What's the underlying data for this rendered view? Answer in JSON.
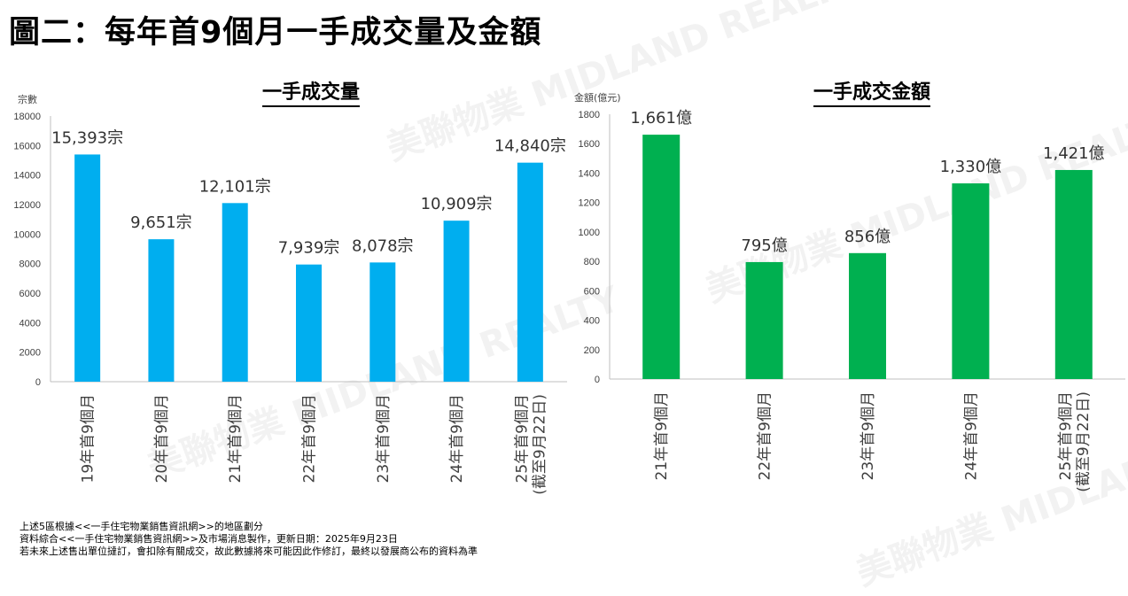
{
  "header": {
    "title": "圖二：每年首9個月一手成交量及金額"
  },
  "watermark": "美聯物業 MIDLAND REALTY",
  "chart_data": [
    {
      "type": "bar",
      "title": "一手成交量",
      "ylabel": "宗數",
      "ylim": [
        0,
        18000
      ],
      "yticks": [
        0,
        2000,
        4000,
        6000,
        8000,
        10000,
        12000,
        14000,
        16000,
        18000
      ],
      "categories": [
        "19年首9個月",
        "20年首9個月",
        "21年首9個月",
        "22年首9個月",
        "23年首9個月",
        "24年首9個月",
        "25年首9個月|(截至9月22日)"
      ],
      "values": [
        15393,
        9651,
        12101,
        7939,
        8078,
        10909,
        14840
      ],
      "data_labels": [
        "15,393宗",
        "9,651宗",
        "12,101宗",
        "7,939宗",
        "8,078宗",
        "10,909宗",
        "14,840宗"
      ],
      "color": "#00aeef"
    },
    {
      "type": "bar",
      "title": "一手成交金額",
      "ylabel": "金額(億元)",
      "ylim": [
        0,
        1800
      ],
      "yticks": [
        0,
        200,
        400,
        600,
        800,
        1000,
        1200,
        1400,
        1600,
        1800
      ],
      "categories": [
        "21年首9個月",
        "22年首9個月",
        "23年首9個月",
        "24年首9個月",
        "25年首9個月|(截至9月22日)"
      ],
      "values": [
        1661,
        795,
        856,
        1330,
        1421
      ],
      "data_labels": [
        "1,661億",
        "795億",
        "856億",
        "1,330億",
        "1,421億"
      ],
      "color": "#00b050"
    }
  ],
  "notes": [
    "上述5區根據<<一手住宅物業銷售資訊網>>的地區劃分",
    "資料綜合<<一手住宅物業銷售資訊網>>及市場消息製作，更新日期：2025年9月23日",
    "若未來上述售出單位撻訂，會扣除有關成交，故此數據將來可能因此作修訂，最終以發展商公布的資料為準"
  ]
}
